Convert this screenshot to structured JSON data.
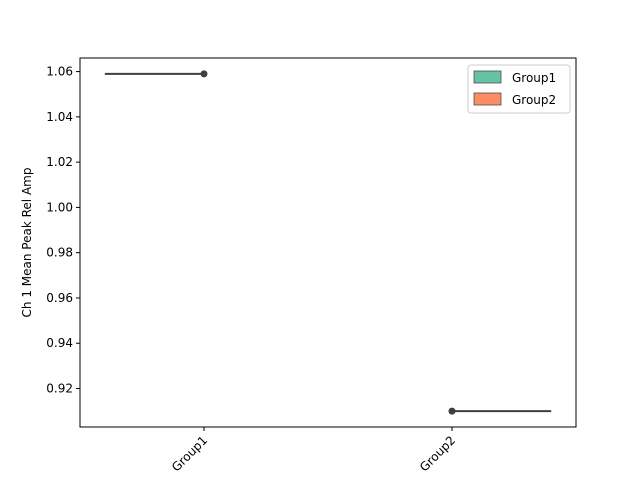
{
  "chart_data": {
    "type": "violin",
    "categories": [
      "Group1",
      "Group2"
    ],
    "series": [
      {
        "name": "Group1",
        "category": "Group1",
        "values": [
          1.059
        ],
        "color": "#66c2a5"
      },
      {
        "name": "Group2",
        "category": "Group2",
        "values": [
          0.91
        ],
        "color": "#fc8d62"
      }
    ],
    "xlabel": "",
    "ylabel": "Ch 1 Mean Peak Rel Amp",
    "ylim": [
      0.903,
      1.066
    ],
    "yticks": [
      "0.92",
      "0.94",
      "0.96",
      "0.98",
      "1.00",
      "1.02",
      "1.04",
      "1.06"
    ],
    "xticks": [
      "Group1",
      "Group2"
    ],
    "xtick_rotation": 45,
    "legend": {
      "position": "top-right",
      "entries": [
        "Group1",
        "Group2"
      ]
    },
    "grid": false,
    "line_color": "#3f3f3f"
  }
}
